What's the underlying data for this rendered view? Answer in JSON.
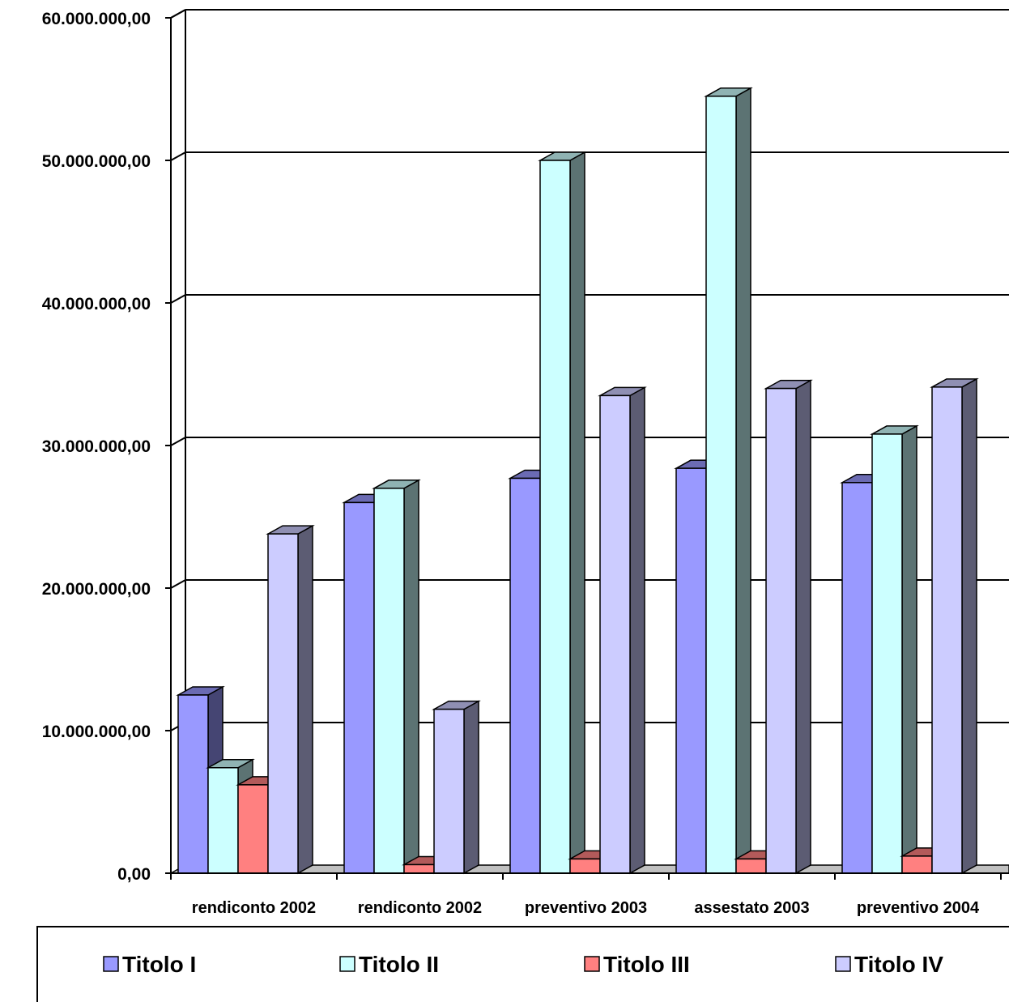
{
  "chart_data": {
    "type": "bar",
    "title": "",
    "xlabel": "",
    "ylabel": "",
    "ylim": [
      0,
      60000000
    ],
    "y_ticks": [
      "0,00",
      "10.000.000,00",
      "20.000.000,00",
      "30.000.000,00",
      "40.000.000,00",
      "50.000.000,00",
      "60.000.000,00"
    ],
    "y_tick_values": [
      0,
      10000000,
      20000000,
      30000000,
      40000000,
      50000000,
      60000000
    ],
    "grid": true,
    "three_d": true,
    "legend_position": "bottom",
    "categories": [
      "rendiconto 2002",
      "rendiconto 2002",
      "preventivo 2003",
      "assestato 2003",
      "preventivo 2004"
    ],
    "series": [
      {
        "name": "Titolo I",
        "color": "#9999ff",
        "values": [
          12500000,
          26000000,
          27700000,
          28400000,
          27400000
        ]
      },
      {
        "name": "Titolo II",
        "color": "#ccffff",
        "values": [
          7400000,
          27000000,
          50000000,
          54500000,
          30800000
        ]
      },
      {
        "name": "Titolo III",
        "color": "#ff8080",
        "values": [
          6200000,
          600000,
          1000000,
          1000000,
          1200000
        ]
      },
      {
        "name": "Titolo IV",
        "color": "#ccccff",
        "values": [
          23800000,
          11500000,
          33500000,
          34000000,
          34100000
        ]
      }
    ]
  }
}
